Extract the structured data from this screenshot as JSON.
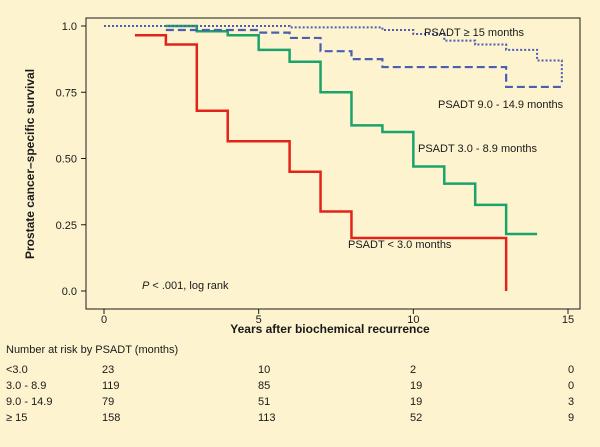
{
  "chart_data": {
    "type": "line",
    "subtype": "kaplan-meier step",
    "xlabel": "Years after biochemical recurrence",
    "ylabel": "Prostate cancer–specific survival",
    "xlim": [
      0,
      15
    ],
    "ylim": [
      0,
      1
    ],
    "xticks": [
      "0",
      "5",
      "10",
      "15"
    ],
    "yticks": [
      "0.0",
      "0.25",
      "0.50",
      "0.75",
      "1.0"
    ],
    "annotation": "P < .001, log rank",
    "series": [
      {
        "name": "PSADT < 3.0 months",
        "color": "#e2231a",
        "dash": "solid",
        "x": [
          1,
          2,
          3,
          4,
          5,
          6,
          7,
          8,
          13,
          13
        ],
        "y": [
          0.965,
          0.93,
          0.68,
          0.565,
          0.565,
          0.45,
          0.3,
          0.2,
          0.2,
          0.0
        ]
      },
      {
        "name": "PSADT 3.0 - 8.9 months",
        "color": "#1aa36b",
        "dash": "solid",
        "x": [
          2,
          3,
          4,
          5,
          6,
          7,
          8,
          9,
          10,
          11,
          12,
          13,
          14
        ],
        "y": [
          1.0,
          0.98,
          0.965,
          0.91,
          0.865,
          0.75,
          0.625,
          0.6,
          0.47,
          0.405,
          0.325,
          0.215,
          0.215
        ]
      },
      {
        "name": "PSADT 9.0 - 14.9 months",
        "color": "#4a5fb0",
        "dash": "dashed",
        "x": [
          2,
          4,
          5,
          6,
          7,
          8,
          9,
          12,
          13,
          14.8
        ],
        "y": [
          0.985,
          0.985,
          0.975,
          0.955,
          0.905,
          0.875,
          0.845,
          0.845,
          0.77,
          0.77
        ]
      },
      {
        "name": "PSADT ≥ 15 months",
        "color": "#4a5fb0",
        "dash": "dotted",
        "x": [
          0,
          6,
          9,
          10,
          11,
          12,
          13,
          14,
          14.8
        ],
        "y": [
          1.0,
          0.995,
          0.985,
          0.97,
          0.945,
          0.93,
          0.91,
          0.87,
          0.78
        ]
      }
    ]
  },
  "labels": {
    "psadt_lt3": "PSADT < 3.0 months",
    "psadt_3_89": "PSADT 3.0 - 8.9 months",
    "psadt_9_149": "PSADT 9.0 - 14.9 months",
    "psadt_ge15": "PSADT ≥ 15 months",
    "p_value_prefix": "P",
    "p_value_rest": " < .001, log rank"
  },
  "risk_table": {
    "title": "Number at risk by PSADT (months)",
    "rows": [
      {
        "group": "<3.0",
        "values": [
          "23",
          "10",
          "2",
          "0"
        ]
      },
      {
        "group": "3.0 - 8.9",
        "values": [
          "119",
          "85",
          "19",
          "0"
        ]
      },
      {
        "group": "9.0 - 14.9",
        "values": [
          "79",
          "51",
          "19",
          "3"
        ]
      },
      {
        "group": "≥ 15",
        "values": [
          "158",
          "113",
          "52",
          "9"
        ]
      }
    ]
  }
}
